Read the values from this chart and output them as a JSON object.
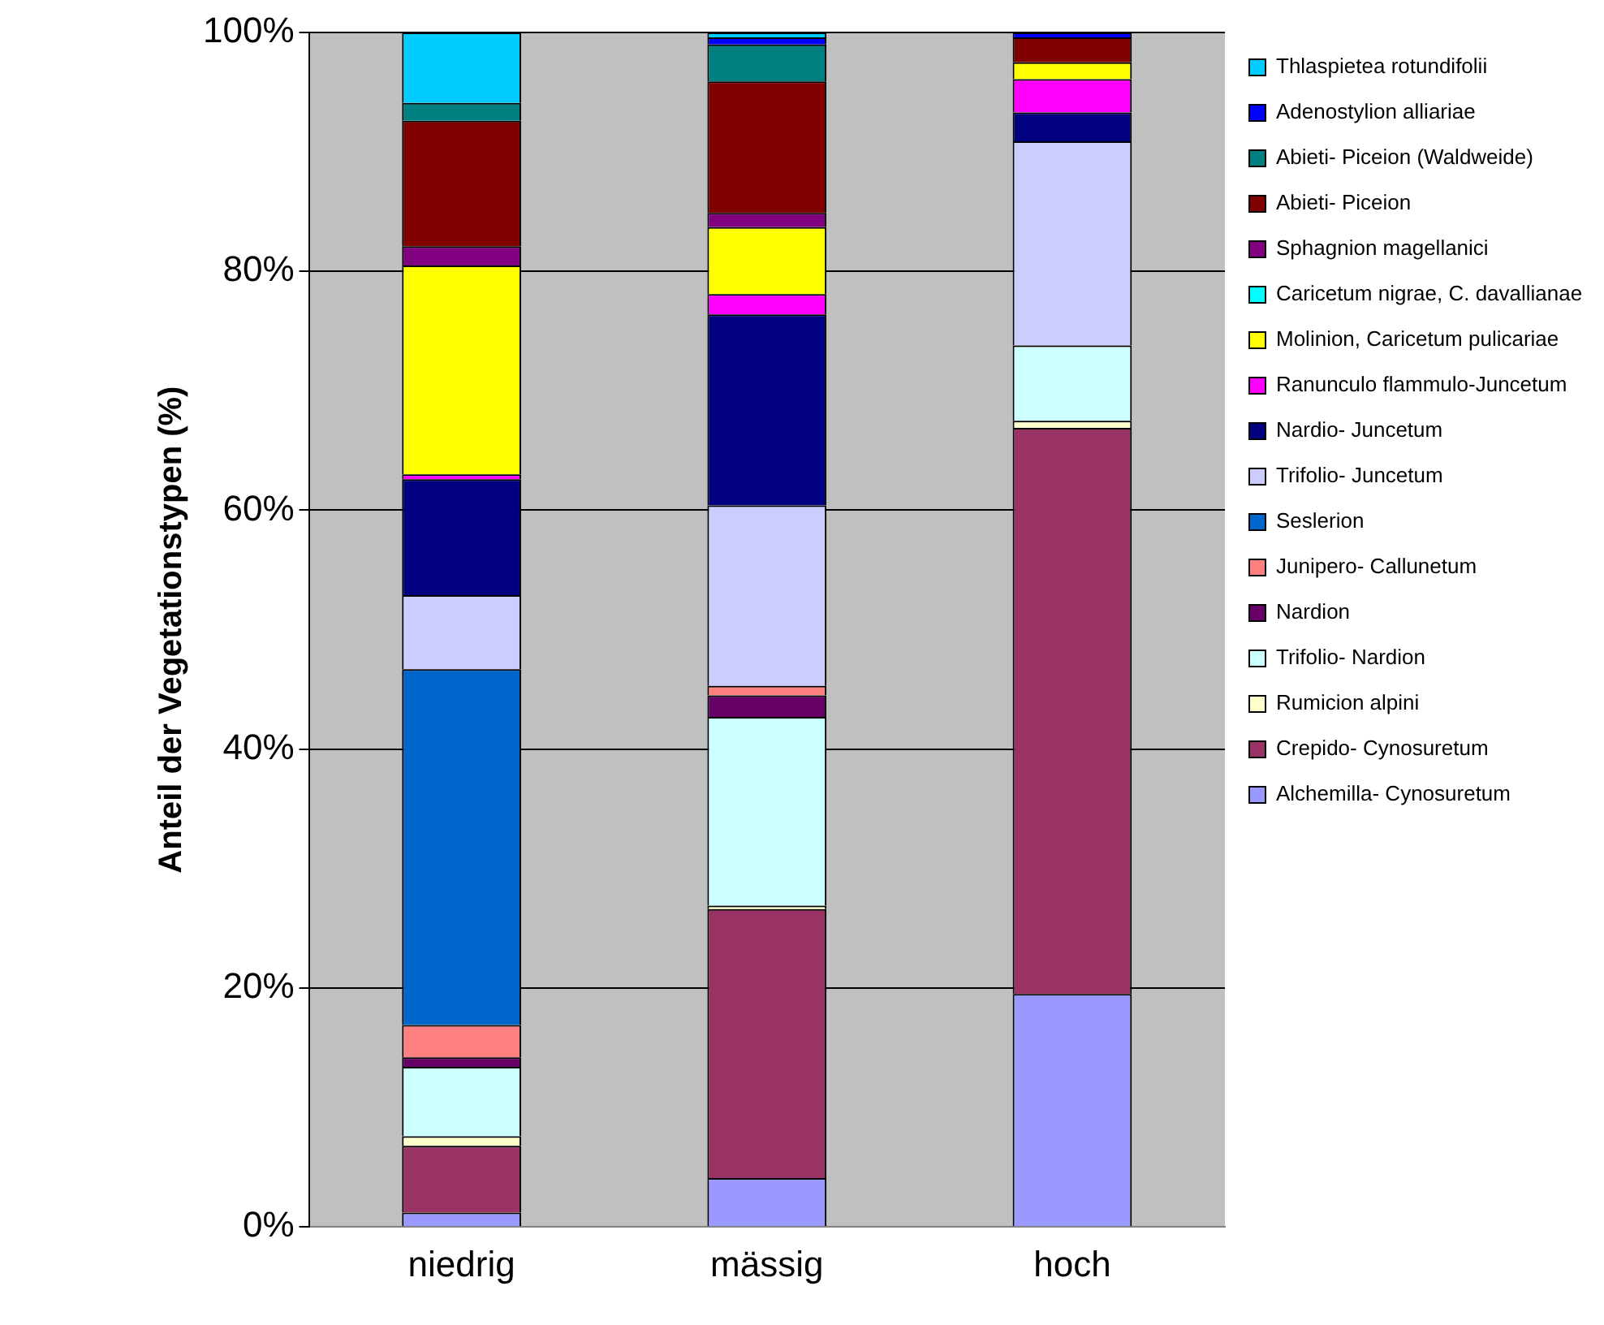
{
  "chart_data": {
    "type": "bar",
    "stacked": true,
    "ylabel": "Anteil der Vegetationstypen (%)",
    "categories": [
      "niedrig",
      "mässig",
      "hoch"
    ],
    "ylim": [
      0,
      100
    ],
    "yticks": [
      {
        "value": 0,
        "label": "0%"
      },
      {
        "value": 20,
        "label": "20%"
      },
      {
        "value": 40,
        "label": "40%"
      },
      {
        "value": 60,
        "label": "60%"
      },
      {
        "value": 80,
        "label": "80%"
      },
      {
        "value": 100,
        "label": "100%"
      }
    ],
    "grid": "y",
    "legend": "right",
    "series": [
      {
        "name": "Alchemilla- Cynosuretum",
        "color": "#9999ff",
        "values": [
          1.2,
          4.1,
          19.5
        ]
      },
      {
        "name": "Crepido- Cynosuretum",
        "color": "#993366",
        "values": [
          5.6,
          22.5,
          47.4
        ]
      },
      {
        "name": "Rumicion alpini",
        "color": "#ffffcc",
        "values": [
          0.8,
          0.3,
          0.6
        ]
      },
      {
        "name": "Trifolio- Nardion",
        "color": "#ccffff",
        "values": [
          5.8,
          15.8,
          6.3
        ]
      },
      {
        "name": "Nardion",
        "color": "#660066",
        "values": [
          0.8,
          1.8,
          0
        ]
      },
      {
        "name": "Junipero- Callunetum",
        "color": "#ff8080",
        "values": [
          2.7,
          0.8,
          0
        ]
      },
      {
        "name": "Seslerion",
        "color": "#0066cc",
        "values": [
          29.8,
          0,
          0
        ]
      },
      {
        "name": "Trifolio- Juncetum",
        "color": "#ccccff",
        "values": [
          6.2,
          15.1,
          17.1
        ]
      },
      {
        "name": "Nardio- Juncetum",
        "color": "#000080",
        "values": [
          9.7,
          16.0,
          2.4
        ]
      },
      {
        "name": "Ranunculo flammulo-Juncetum",
        "color": "#ff00ff",
        "values": [
          0.4,
          1.7,
          2.8
        ]
      },
      {
        "name": "Molinion, Caricetum pulicariae",
        "color": "#ffff00",
        "values": [
          17.5,
          5.6,
          1.4
        ]
      },
      {
        "name": "Caricetum nigrae, C. davallianae",
        "color": "#00ffff",
        "values": [
          0,
          0,
          0
        ]
      },
      {
        "name": "Sphagnion magellanici",
        "color": "#800080",
        "values": [
          1.6,
          1.2,
          0
        ]
      },
      {
        "name": "Abieti- Piceion",
        "color": "#800000",
        "values": [
          10.5,
          11.0,
          2.1
        ]
      },
      {
        "name": "Abieti- Piceion (Waldweide)",
        "color": "#008080",
        "values": [
          1.5,
          3.1,
          0
        ]
      },
      {
        "name": "Adenostylion alliariae",
        "color": "#0000ff",
        "values": [
          0,
          0.6,
          0.4
        ]
      },
      {
        "name": "Thlaspietea rotundifolii",
        "color": "#00ccff",
        "values": [
          5.9,
          0.4,
          0
        ]
      }
    ]
  }
}
